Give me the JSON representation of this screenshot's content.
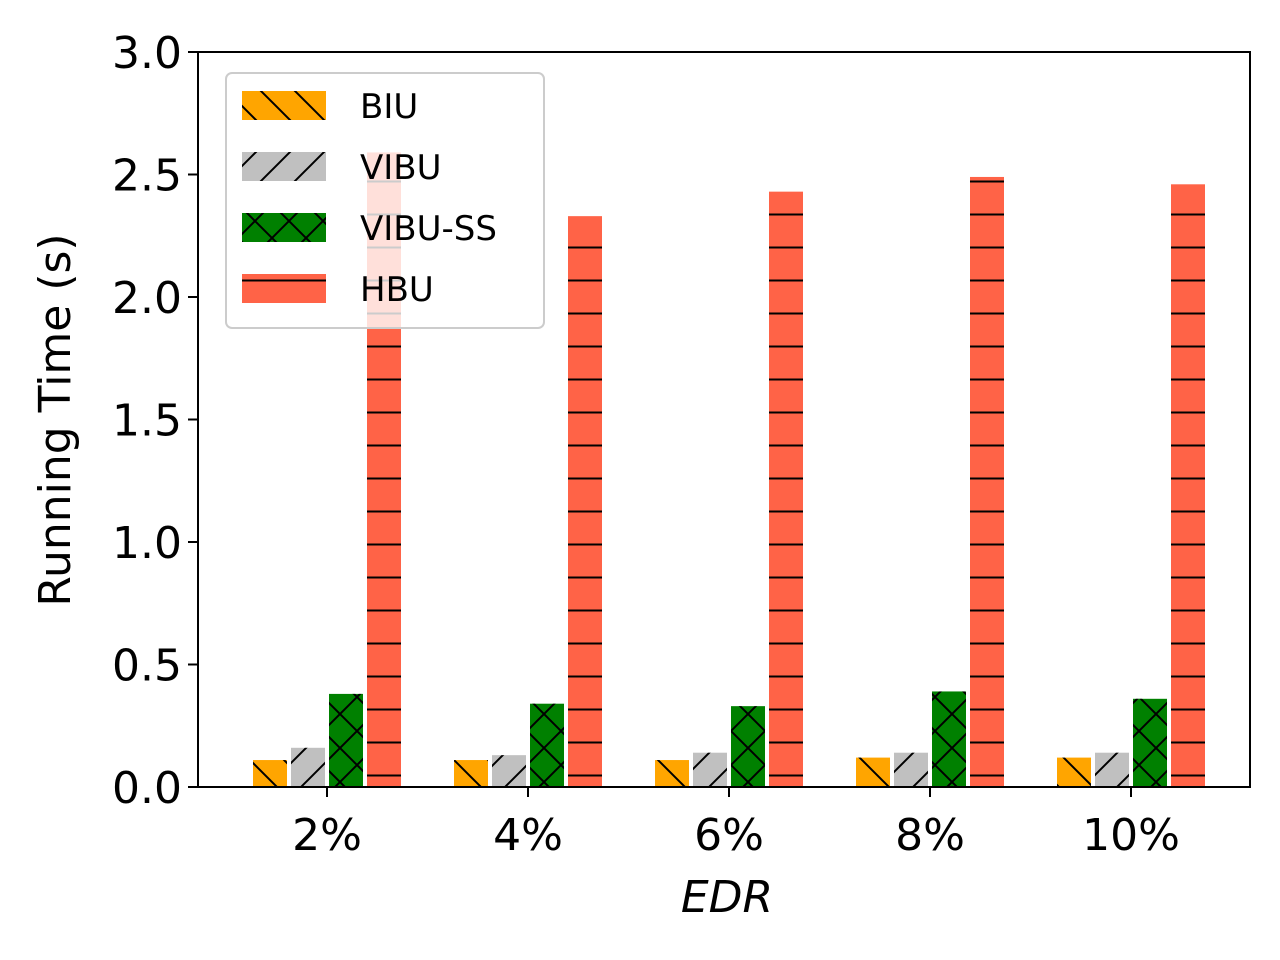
{
  "chart_data": {
    "type": "bar",
    "xlabel": "EDR",
    "ylabel": "Running Time (s)",
    "categories": [
      "2%",
      "4%",
      "6%",
      "8%",
      "10%"
    ],
    "ylim": [
      0,
      3.0
    ],
    "yticks": [
      0.0,
      0.5,
      1.0,
      1.5,
      2.0,
      2.5,
      3.0
    ],
    "ytick_labels": [
      "0.0",
      "0.5",
      "1.0",
      "1.5",
      "2.0",
      "2.5",
      "3.0"
    ],
    "grid": false,
    "legend_position": "top-left",
    "series": [
      {
        "name": "BIU",
        "color": "#FFA500",
        "hatch": "backslash",
        "values": [
          0.11,
          0.11,
          0.11,
          0.12,
          0.12
        ]
      },
      {
        "name": "VIBU",
        "color": "#C0C0C0",
        "hatch": "slash",
        "values": [
          0.16,
          0.13,
          0.14,
          0.14,
          0.14
        ]
      },
      {
        "name": "VIBU-SS",
        "color": "#008000",
        "hatch": "cross",
        "values": [
          0.38,
          0.34,
          0.33,
          0.39,
          0.36
        ]
      },
      {
        "name": "HBU",
        "color": "#FF6347",
        "hatch": "horizontal",
        "values": [
          2.59,
          2.33,
          2.43,
          2.49,
          2.46
        ]
      }
    ]
  }
}
